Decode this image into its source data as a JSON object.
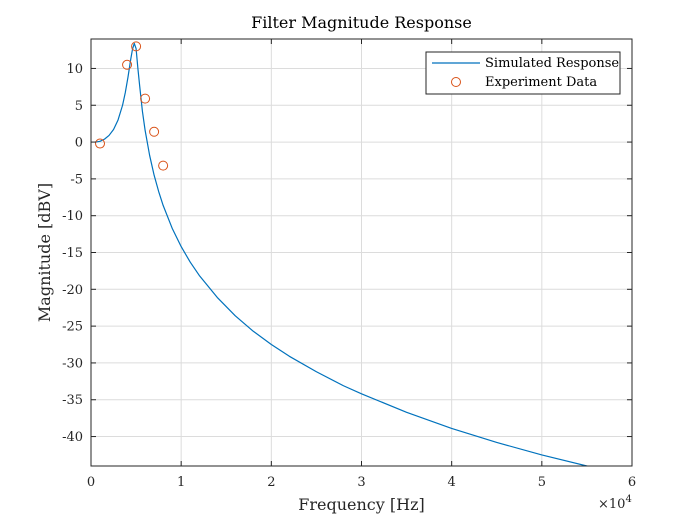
{
  "chart_data": {
    "type": "line",
    "title": "Filter Magnitude Response",
    "xlabel": "Frequency [Hz]",
    "ylabel": "Magnitude [dBV]",
    "x_multiplier_label": "×10",
    "x_multiplier_exponent": "4",
    "xlim": [
      0,
      60000
    ],
    "ylim": [
      -44,
      14
    ],
    "xticks": [
      0,
      10000,
      20000,
      30000,
      40000,
      50000,
      60000
    ],
    "xtick_labels": [
      "0",
      "1",
      "2",
      "3",
      "4",
      "5",
      "6"
    ],
    "yticks": [
      10,
      5,
      0,
      -5,
      -10,
      -15,
      -20,
      -25,
      -30,
      -35,
      -40
    ],
    "ytick_labels": [
      "10",
      "5",
      "0",
      "-5",
      "-10",
      "-15",
      "-20",
      "-25",
      "-30",
      "-35",
      "-40"
    ],
    "grid": true,
    "legend_position": "top-right",
    "series": [
      {
        "name": "Simulated Response",
        "kind": "line",
        "color": "#0072BD",
        "x": [
          500,
          1000,
          1500,
          2000,
          2500,
          3000,
          3500,
          3800,
          4100,
          4400,
          4600,
          4800,
          5000,
          5200,
          5400,
          5700,
          6000,
          6500,
          7000,
          7500,
          8000,
          9000,
          10000,
          11000,
          12000,
          14000,
          16000,
          18000,
          20000,
          22000,
          25000,
          28000,
          30000,
          35000,
          40000,
          45000,
          50000,
          55000,
          60000
        ],
        "y": [
          0.0,
          0.1,
          0.4,
          0.9,
          1.7,
          3.0,
          5.0,
          6.7,
          8.8,
          11.2,
          12.6,
          13.4,
          12.7,
          10.0,
          7.6,
          4.2,
          1.6,
          -1.8,
          -4.5,
          -6.7,
          -8.6,
          -11.7,
          -14.2,
          -16.3,
          -18.1,
          -21.1,
          -23.6,
          -25.7,
          -27.5,
          -29.1,
          -31.2,
          -33.1,
          -34.2,
          -36.7,
          -38.9,
          -40.8,
          -42.5,
          -44.0,
          -45.4
        ]
      },
      {
        "name": "Experiment Data",
        "kind": "scatter",
        "color": "#D95319",
        "x": [
          1000,
          4000,
          5000,
          6000,
          7000,
          8000
        ],
        "y": [
          -0.2,
          10.5,
          13.0,
          5.9,
          1.4,
          -3.2
        ]
      }
    ]
  }
}
